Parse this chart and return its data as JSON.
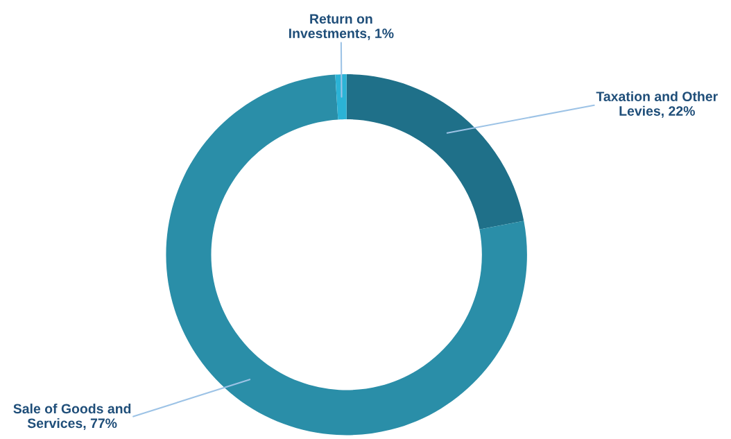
{
  "chart_data": {
    "type": "donut",
    "categories": [
      "Taxation and Other Levies",
      "Sale of Goods and Services",
      "Return on Investments"
    ],
    "values": [
      22,
      77,
      1
    ],
    "value_labels": [
      "22%",
      "77%",
      "1%"
    ],
    "colors": [
      "#1f7089",
      "#2a8ea8",
      "#2bb3d6"
    ],
    "legend": false
  }
}
